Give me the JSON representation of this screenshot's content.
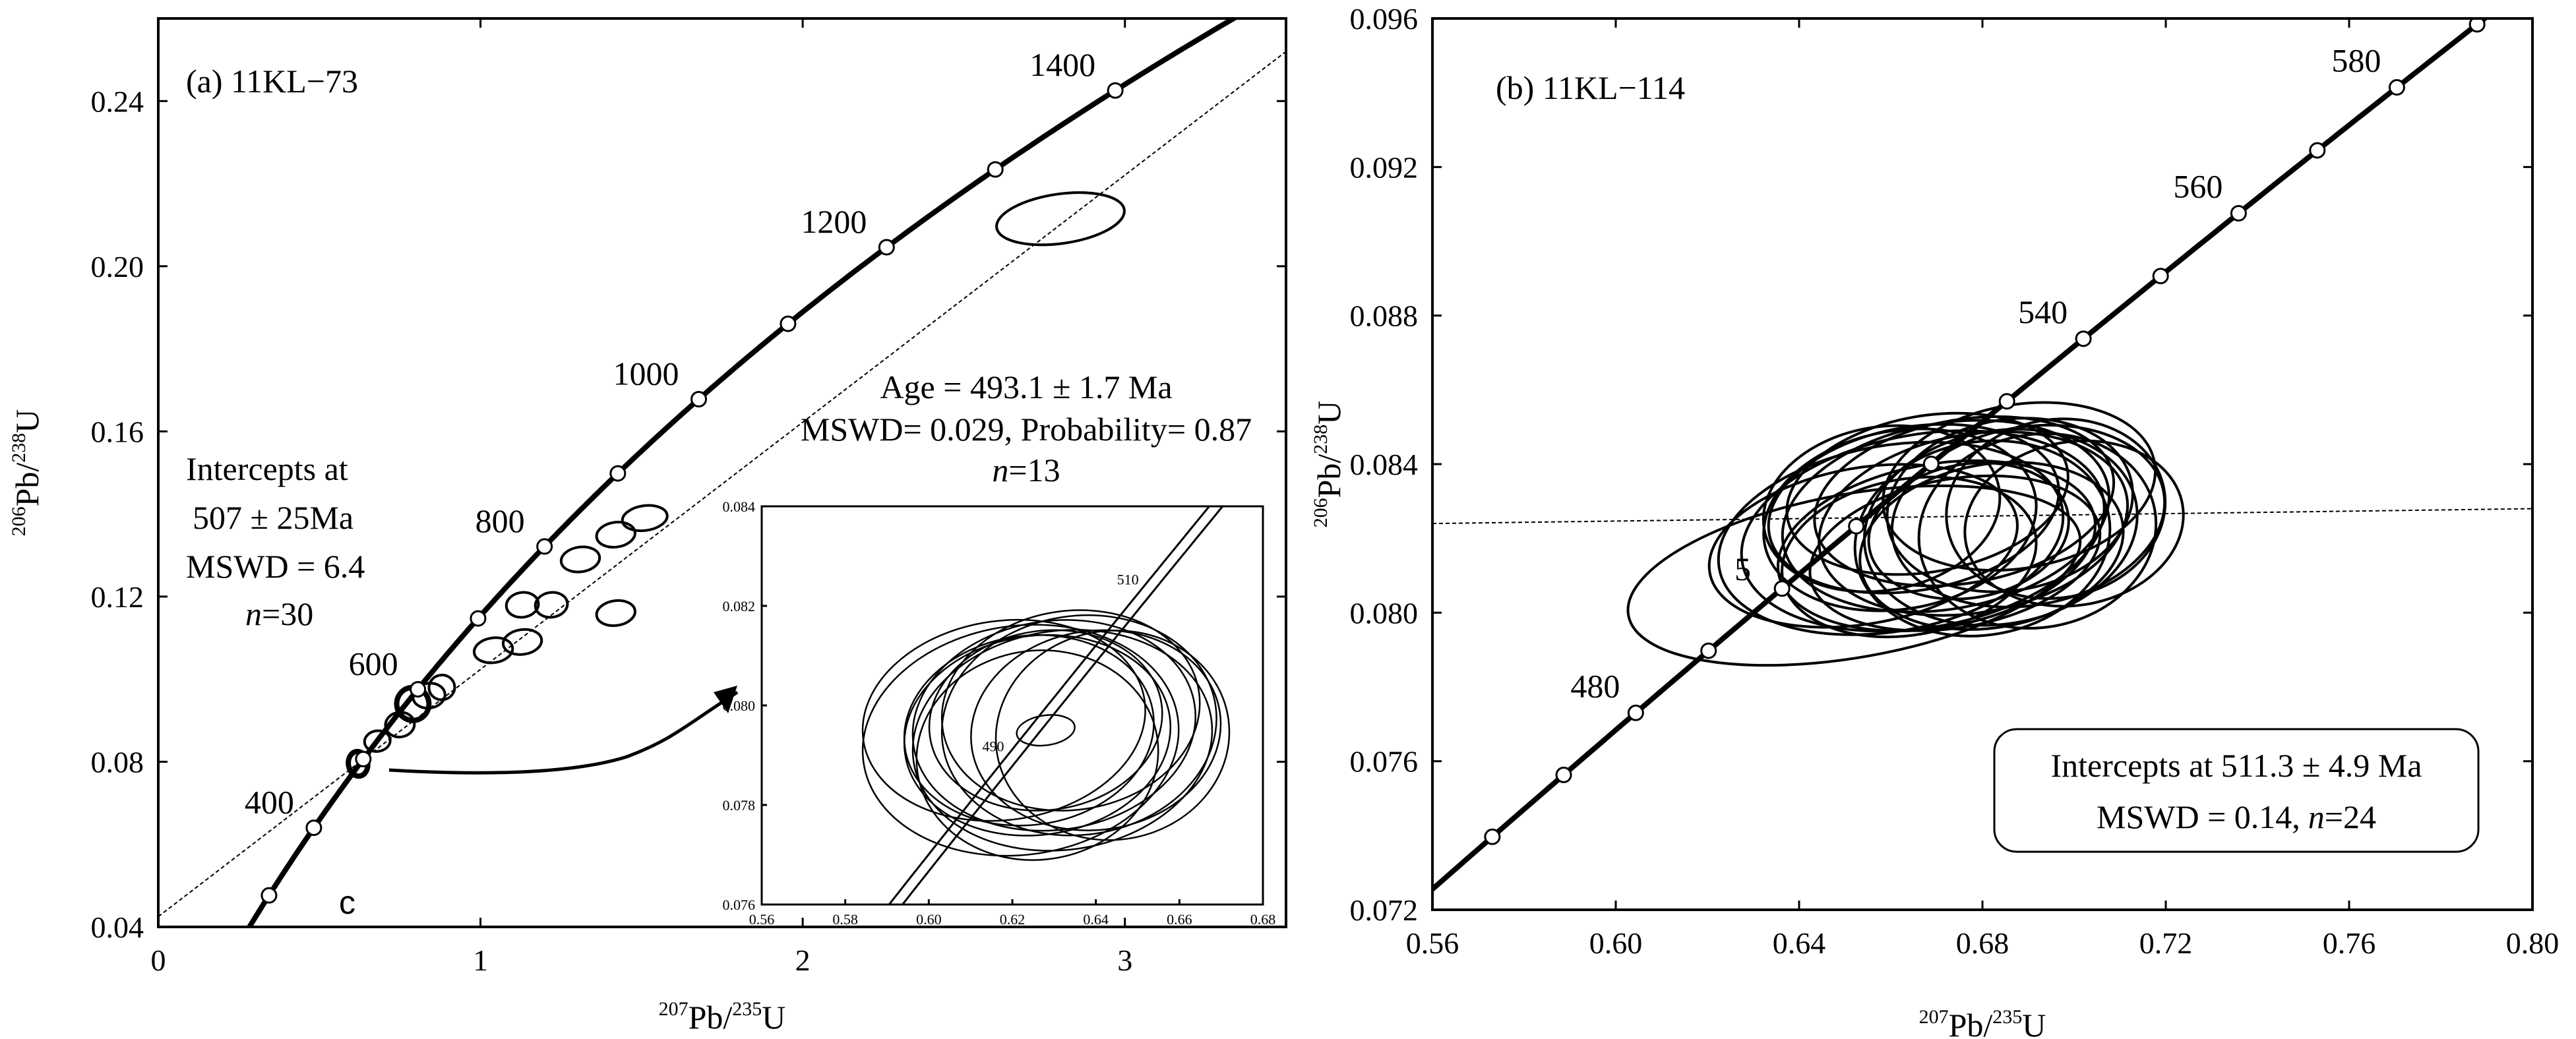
{
  "chart_data": [
    {
      "type": "scatter",
      "panel_label": "(a) 11KL−73",
      "xlabel": {
        "sup1": "207",
        "base1": "Pb/",
        "sup2": "235",
        "base2": "U"
      },
      "ylabel": {
        "sup1": "206",
        "base1": "Pb/",
        "sup2": "238",
        "base2": "U"
      },
      "xlim": [
        0,
        3.5
      ],
      "ylim": [
        0.04,
        0.26
      ],
      "x_ticks": [
        0,
        1,
        2,
        3
      ],
      "x_tick_labels": [
        "0",
        "1",
        "2",
        "3"
      ],
      "y_ticks": [
        0.04,
        0.08,
        0.12,
        0.16,
        0.2,
        0.24
      ],
      "y_tick_labels": [
        "0.04",
        "0.08",
        "0.12",
        "0.16",
        "0.20",
        "0.24"
      ],
      "concordia_age_labels": [
        {
          "age": 400,
          "label": "400"
        },
        {
          "age": 600,
          "label": "600"
        },
        {
          "age": 800,
          "label": "800"
        },
        {
          "age": 1000,
          "label": "1000"
        },
        {
          "age": 1200,
          "label": "1200"
        },
        {
          "age": 1400,
          "label": "1400"
        }
      ],
      "concordia_nodes_ma": [
        300,
        400,
        500,
        600,
        700,
        800,
        900,
        1000,
        1100,
        1200,
        1300,
        1400
      ],
      "discordia": {
        "x": [
          0,
          3.5
        ],
        "y": [
          0.0425,
          0.252
        ]
      },
      "ellipses": [
        {
          "x": 0.62,
          "y": 0.0795,
          "rx": 0.03,
          "ry": 0.003,
          "bold": true
        },
        {
          "x": 0.68,
          "y": 0.085,
          "rx": 0.04,
          "ry": 0.0025
        },
        {
          "x": 0.75,
          "y": 0.089,
          "rx": 0.045,
          "ry": 0.003
        },
        {
          "x": 0.79,
          "y": 0.094,
          "rx": 0.05,
          "ry": 0.004,
          "bold": true
        },
        {
          "x": 0.84,
          "y": 0.096,
          "rx": 0.05,
          "ry": 0.003
        },
        {
          "x": 0.88,
          "y": 0.098,
          "rx": 0.04,
          "ry": 0.003
        },
        {
          "x": 1.04,
          "y": 0.107,
          "rx": 0.06,
          "ry": 0.003
        },
        {
          "x": 1.13,
          "y": 0.109,
          "rx": 0.06,
          "ry": 0.003
        },
        {
          "x": 1.13,
          "y": 0.118,
          "rx": 0.05,
          "ry": 0.003
        },
        {
          "x": 1.22,
          "y": 0.118,
          "rx": 0.05,
          "ry": 0.003
        },
        {
          "x": 1.31,
          "y": 0.129,
          "rx": 0.06,
          "ry": 0.003
        },
        {
          "x": 1.42,
          "y": 0.135,
          "rx": 0.06,
          "ry": 0.003
        },
        {
          "x": 1.51,
          "y": 0.139,
          "rx": 0.07,
          "ry": 0.003
        },
        {
          "x": 1.42,
          "y": 0.116,
          "rx": 0.06,
          "ry": 0.003
        },
        {
          "x": 2.8,
          "y": 0.2115,
          "rx": 0.2,
          "ry": 0.006
        }
      ],
      "annotations": {
        "intercepts": [
          "Intercepts at",
          "507 ± 25Ma",
          "MSWD = 6.4"
        ],
        "n_prefix": "n",
        "n_value": "=30",
        "corner_label": "c"
      },
      "inset": {
        "title_lines": [
          "Age = 493.1 ± 1.7 Ma",
          "MSWD= 0.029, Probability= 0.87"
        ],
        "n_prefix": "n",
        "n_value": "=13",
        "xlim": [
          0.56,
          0.68
        ],
        "ylim": [
          0.076,
          0.084
        ],
        "x_ticks": [
          0.56,
          0.58,
          0.6,
          0.62,
          0.64,
          0.66,
          0.68
        ],
        "x_tick_labels": [
          "0.56",
          "0.58",
          "0.60",
          "0.62",
          "0.64",
          "0.66",
          "0.68"
        ],
        "y_ticks": [
          0.076,
          0.078,
          0.08,
          0.082,
          0.084
        ],
        "y_tick_labels": [
          "0.076",
          "0.078",
          "0.080",
          "0.082",
          "0.084"
        ],
        "concordia_age_labels": [
          {
            "age": 490,
            "label": "490"
          },
          {
            "age": 510,
            "label": "510"
          }
        ],
        "ellipses": [
          {
            "x": 0.626,
            "y": 0.0794,
            "rx": 0.032,
            "ry": 0.002
          },
          {
            "x": 0.63,
            "y": 0.0796,
            "rx": 0.034,
            "ry": 0.0021
          },
          {
            "x": 0.624,
            "y": 0.0795,
            "rx": 0.03,
            "ry": 0.0019
          },
          {
            "x": 0.632,
            "y": 0.0793,
            "rx": 0.036,
            "ry": 0.0022
          },
          {
            "x": 0.628,
            "y": 0.0797,
            "rx": 0.028,
            "ry": 0.0018
          },
          {
            "x": 0.636,
            "y": 0.0796,
            "rx": 0.033,
            "ry": 0.0022
          },
          {
            "x": 0.64,
            "y": 0.0795,
            "rx": 0.03,
            "ry": 0.002
          },
          {
            "x": 0.622,
            "y": 0.0793,
            "rx": 0.038,
            "ry": 0.0023
          },
          {
            "x": 0.634,
            "y": 0.0799,
            "rx": 0.031,
            "ry": 0.002
          },
          {
            "x": 0.626,
            "y": 0.079,
            "rx": 0.029,
            "ry": 0.0021
          },
          {
            "x": 0.644,
            "y": 0.0794,
            "rx": 0.028,
            "ry": 0.0021
          },
          {
            "x": 0.618,
            "y": 0.0797,
            "rx": 0.034,
            "ry": 0.002
          },
          {
            "x": 0.628,
            "y": 0.0795,
            "rx": 0.007,
            "ry": 0.0003
          }
        ]
      }
    },
    {
      "type": "scatter",
      "panel_label": "(b) 11KL−114",
      "xlabel": {
        "sup1": "207",
        "base1": "Pb/",
        "sup2": "235",
        "base2": "U"
      },
      "ylabel": {
        "sup1": "206",
        "base1": "Pb/",
        "sup2": "238",
        "base2": "U"
      },
      "xlim": [
        0.56,
        0.8
      ],
      "ylim": [
        0.072,
        0.096
      ],
      "x_ticks": [
        0.56,
        0.6,
        0.64,
        0.68,
        0.72,
        0.76,
        0.8
      ],
      "x_tick_labels": [
        "0.56",
        "0.60",
        "0.64",
        "0.68",
        "0.72",
        "0.76",
        "0.80"
      ],
      "y_ticks": [
        0.072,
        0.076,
        0.08,
        0.084,
        0.088,
        0.092,
        0.096
      ],
      "y_tick_labels": [
        "0.072",
        "0.076",
        "0.080",
        "0.084",
        "0.088",
        "0.092",
        "0.096"
      ],
      "concordia_age_labels": [
        {
          "age": 480,
          "label": "480"
        },
        {
          "age": 540,
          "label": "540"
        },
        {
          "age": 560,
          "label": "560"
        },
        {
          "age": 580,
          "label": "580"
        }
      ],
      "concordia_nodes_ma": [
        460,
        470,
        480,
        490,
        500,
        510,
        520,
        530,
        540,
        550,
        560,
        570,
        580,
        590
      ],
      "discordia": {
        "x": [
          0.56,
          0.8
        ],
        "y": [
          0.0824,
          0.0828
        ]
      },
      "ellipses": [
        {
          "x": 0.667,
          "y": 0.0822,
          "rx": 0.04,
          "ry": 0.0026
        },
        {
          "x": 0.672,
          "y": 0.0826,
          "rx": 0.036,
          "ry": 0.0025
        },
        {
          "x": 0.678,
          "y": 0.0824,
          "rx": 0.034,
          "ry": 0.0024
        },
        {
          "x": 0.665,
          "y": 0.0828,
          "rx": 0.032,
          "ry": 0.0022
        },
        {
          "x": 0.684,
          "y": 0.0823,
          "rx": 0.03,
          "ry": 0.0026
        },
        {
          "x": 0.66,
          "y": 0.082,
          "rx": 0.038,
          "ry": 0.0025
        },
        {
          "x": 0.676,
          "y": 0.083,
          "rx": 0.033,
          "ry": 0.0022
        },
        {
          "x": 0.69,
          "y": 0.0826,
          "rx": 0.03,
          "ry": 0.0024
        },
        {
          "x": 0.67,
          "y": 0.0818,
          "rx": 0.035,
          "ry": 0.0022
        },
        {
          "x": 0.68,
          "y": 0.082,
          "rx": 0.028,
          "ry": 0.0026
        },
        {
          "x": 0.662,
          "y": 0.0825,
          "rx": 0.03,
          "ry": 0.0024
        },
        {
          "x": 0.686,
          "y": 0.0829,
          "rx": 0.027,
          "ry": 0.0023
        },
        {
          "x": 0.674,
          "y": 0.0816,
          "rx": 0.032,
          "ry": 0.002
        },
        {
          "x": 0.692,
          "y": 0.0822,
          "rx": 0.026,
          "ry": 0.0026
        },
        {
          "x": 0.668,
          "y": 0.0832,
          "rx": 0.031,
          "ry": 0.0021
        },
        {
          "x": 0.682,
          "y": 0.0818,
          "rx": 0.029,
          "ry": 0.0022
        },
        {
          "x": 0.658,
          "y": 0.0828,
          "rx": 0.026,
          "ry": 0.0022
        },
        {
          "x": 0.696,
          "y": 0.0828,
          "rx": 0.024,
          "ry": 0.0024
        },
        {
          "x": 0.664,
          "y": 0.0815,
          "rx": 0.028,
          "ry": 0.0021
        },
        {
          "x": 0.688,
          "y": 0.0834,
          "rx": 0.03,
          "ry": 0.0022
        },
        {
          "x": 0.677,
          "y": 0.0822,
          "rx": 0.022,
          "ry": 0.0018
        },
        {
          "x": 0.654,
          "y": 0.0818,
          "rx": 0.034,
          "ry": 0.0021
        },
        {
          "x": 0.7,
          "y": 0.0824,
          "rx": 0.024,
          "ry": 0.0022
        },
        {
          "x": 0.652,
          "y": 0.081,
          "rx": 0.05,
          "ry": 0.0022
        }
      ],
      "annotations": {
        "box_lines": [
          "Intercepts at 511.3 ± 4.9 Ma",
          "MSWD = 0.14,"
        ],
        "n_prefix": "n",
        "n_value": "=24",
        "partial_label": "5"
      }
    }
  ]
}
